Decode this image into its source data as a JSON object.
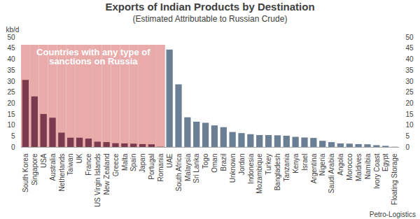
{
  "chart_data": {
    "type": "bar",
    "title": "Exports of Indian Products by Destination",
    "subtitle": "(Estimated Attributable to Russian Crude)",
    "y_label": "kb/d",
    "caption": "Petro-Logistics",
    "categories": [
      "South Korea",
      "Singapore",
      "USA",
      "Australia",
      "Netherlands",
      "Taiwan",
      "UK",
      "France",
      "US Virgin Islands",
      "New Zealand",
      "Greece",
      "Malta",
      "Spain",
      "Japan",
      "Portugal",
      "Romania",
      "UAE",
      "South Africa",
      "Malaysia",
      "Sri Lanka",
      "Togo",
      "Oman",
      "Brazil",
      "Unknown",
      "Jordan",
      "Indonesia",
      "Mozambique",
      "Turkey",
      "Bangladesh",
      "Tanzania",
      "Kenya",
      "Israel",
      "Argentina",
      "Nigeria",
      "Saudi Arabia",
      "Angola",
      "Morocco",
      "Maldives",
      "Namibia",
      "Ivory Coast",
      "Egypt",
      "Floating Storage"
    ],
    "values": [
      30.5,
      23,
      15,
      13.3,
      6.5,
      4.2,
      4.2,
      3.8,
      2.4,
      2.2,
      1.7,
      1.6,
      1.5,
      1.3,
      1.2,
      0.1,
      44.3,
      28.5,
      13.5,
      11.5,
      11,
      9.8,
      9,
      6.8,
      6.3,
      5.8,
      5.4,
      5.4,
      5.3,
      5.1,
      4.6,
      4.3,
      4.1,
      2.8,
      2.2,
      1.6,
      1.5,
      1.3,
      1.2,
      0.8,
      0.5,
      0.1
    ],
    "colors": [
      "#7b3a4e",
      "#7b3a4e",
      "#7b3a4e",
      "#7b3a4e",
      "#7b3a4e",
      "#7b3a4e",
      "#7b3a4e",
      "#7b3a4e",
      "#7b3a4e",
      "#7b3a4e",
      "#7b3a4e",
      "#7b3a4e",
      "#7b3a4e",
      "#7b3a4e",
      "#7b3a4e",
      "#7b3a4e",
      "#6b7f94",
      "#6b7f94",
      "#6b7f94",
      "#6b7f94",
      "#6b7f94",
      "#6b7f94",
      "#6b7f94",
      "#6b7f94",
      "#6b7f94",
      "#6b7f94",
      "#6b7f94",
      "#6b7f94",
      "#6b7f94",
      "#6b7f94",
      "#6b7f94",
      "#6b7f94",
      "#6b7f94",
      "#6b7f94",
      "#6b7f94",
      "#6b7f94",
      "#6b7f94",
      "#6b7f94",
      "#6b7f94",
      "#6b7f94",
      "#6b7f94",
      "#6b7f94"
    ],
    "annotation": {
      "text": "Countries with any type of sanctions on Russia",
      "from": "South Korea",
      "to": "Romania",
      "color": "#e9aaaa"
    },
    "ylim": [
      0,
      50
    ],
    "yticks": [
      0,
      5,
      10,
      15,
      20,
      25,
      30,
      35,
      40,
      45,
      50
    ],
    "grid": false
  }
}
